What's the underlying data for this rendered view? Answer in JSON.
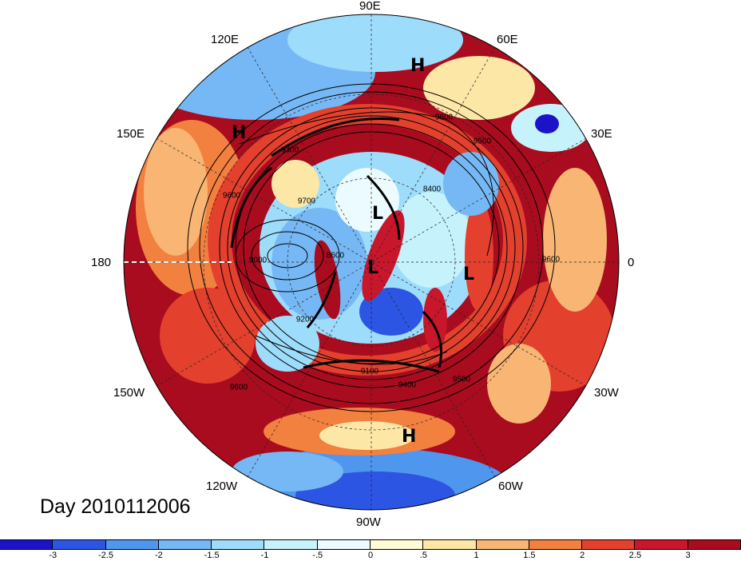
{
  "title": "Day 2010112006",
  "longitude_labels": {
    "top": "90E",
    "upper_left_1": "120E",
    "upper_left_2": "150E",
    "left": "180",
    "lower_left_1": "150W",
    "lower_left_2": "120W",
    "bottom": "90W",
    "lower_right_1": "60W",
    "lower_right_2": "30W",
    "right": "0",
    "upper_right_1": "30E",
    "upper_right_2": "60E"
  },
  "pressure_centers": [
    {
      "label": "H"
    },
    {
      "label": "H"
    },
    {
      "label": "H"
    },
    {
      "label": "L"
    },
    {
      "label": "L"
    },
    {
      "label": "L"
    }
  ],
  "contour_labels": [
    "9600",
    "9500",
    "9300",
    "9600",
    "9700",
    "9000",
    "8600",
    "9200",
    "9100",
    "9400",
    "9500",
    "9600",
    "9600",
    "8400"
  ],
  "colorbar": {
    "colors": [
      "#1c12c8",
      "#2d55e3",
      "#4f96ef",
      "#76b8f5",
      "#9edcfb",
      "#c6f3fb",
      "#ecfbff",
      "#fffdd6",
      "#fde7a6",
      "#f8b573",
      "#f2803f",
      "#e3402e",
      "#c8162a",
      "#a80c1e"
    ],
    "labels": [
      "-3",
      "-2.5",
      "-2",
      "-1.5",
      "-1",
      "-.5",
      "0",
      ".5",
      "1",
      "1.5",
      "2",
      "2.5",
      "3"
    ]
  }
}
